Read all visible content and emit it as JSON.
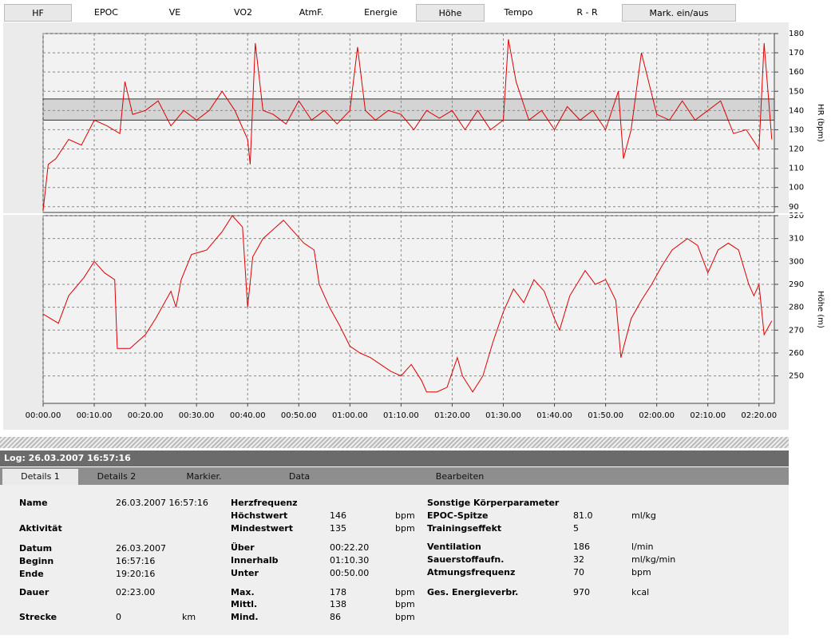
{
  "tabs": [
    {
      "label": "HF",
      "selected": true
    },
    {
      "label": "EPOC",
      "selected": false
    },
    {
      "label": "VE",
      "selected": false
    },
    {
      "label": "VO2",
      "selected": false
    },
    {
      "label": "AtmF.",
      "selected": false
    },
    {
      "label": "Energie",
      "selected": false
    },
    {
      "label": "Höhe",
      "selected": true
    },
    {
      "label": "Tempo",
      "selected": false
    },
    {
      "label": "R - R",
      "selected": false
    },
    {
      "label": "Mark. ein/aus",
      "selected": true
    }
  ],
  "chart_data": [
    {
      "type": "line",
      "ylabel": "HR (bpm)",
      "color": "#dd0000",
      "grid": true,
      "xlim": [
        0,
        143
      ],
      "ylim": [
        87,
        180
      ],
      "yticks": [
        90,
        100,
        110,
        120,
        130,
        140,
        150,
        160,
        170,
        180
      ],
      "zone": [
        135,
        146
      ],
      "x": [
        0,
        1,
        2.5,
        5,
        7.5,
        10,
        12.5,
        15,
        16,
        17.5,
        20,
        22.5,
        25,
        27.5,
        30,
        32.5,
        35,
        37.5,
        40,
        40.5,
        41.5,
        43,
        45,
        47.5,
        50,
        52.5,
        55,
        57.5,
        60,
        61.5,
        63,
        65,
        67.5,
        70,
        72.5,
        75,
        77.5,
        80,
        82.5,
        85,
        87.5,
        90,
        91,
        92.5,
        95,
        97.5,
        100,
        102.5,
        105,
        107.5,
        110,
        112.5,
        113.5,
        115,
        117,
        120,
        122.5,
        125,
        127.5,
        130,
        132.5,
        135,
        137.5,
        140,
        141,
        142.5
      ],
      "values": [
        88,
        112,
        115,
        125,
        122,
        135,
        132,
        128,
        155,
        138,
        140,
        145,
        132,
        140,
        135,
        140,
        150,
        140,
        125,
        112,
        175,
        140,
        138,
        133,
        145,
        135,
        140,
        133,
        140,
        173,
        140,
        135,
        140,
        138,
        130,
        140,
        136,
        140,
        130,
        140,
        130,
        135,
        177,
        155,
        135,
        140,
        130,
        142,
        135,
        140,
        130,
        150,
        115,
        130,
        170,
        138,
        135,
        145,
        135,
        140,
        145,
        128,
        130,
        120,
        175,
        125
      ]
    },
    {
      "type": "line",
      "ylabel": "Höhe (m)",
      "color": "#dd0000",
      "grid": true,
      "xlim": [
        0,
        143
      ],
      "ylim": [
        238,
        320
      ],
      "yticks": [
        250,
        260,
        270,
        280,
        290,
        300,
        310,
        320
      ],
      "xticks": [
        {
          "value": 0,
          "label": "00:00.00"
        },
        {
          "value": 10,
          "label": "00:10.00"
        },
        {
          "value": 20,
          "label": "00:20.00"
        },
        {
          "value": 30,
          "label": "00:30.00"
        },
        {
          "value": 40,
          "label": "00:40.00"
        },
        {
          "value": 50,
          "label": "00:50.00"
        },
        {
          "value": 60,
          "label": "01:00.00"
        },
        {
          "value": 70,
          "label": "01:10.00"
        },
        {
          "value": 80,
          "label": "01:20.00"
        },
        {
          "value": 90,
          "label": "01:30.00"
        },
        {
          "value": 100,
          "label": "01:40.00"
        },
        {
          "value": 110,
          "label": "01:50.00"
        },
        {
          "value": 120,
          "label": "02:00.00"
        },
        {
          "value": 130,
          "label": "02:10.00"
        },
        {
          "value": 140,
          "label": "02:20.00"
        }
      ],
      "x": [
        0,
        3,
        5,
        8,
        10,
        12,
        14,
        14.5,
        17,
        20,
        22,
        25,
        26,
        27,
        29,
        32,
        35,
        37,
        39,
        40,
        41,
        43,
        45,
        47,
        49,
        51,
        53,
        54,
        56,
        58,
        60,
        62,
        64,
        66,
        68,
        70,
        72,
        74,
        75,
        77,
        79,
        81,
        82,
        84,
        86,
        88,
        90,
        92,
        94,
        96,
        98,
        100,
        101,
        103,
        106,
        108,
        110,
        112,
        113,
        115,
        117,
        119,
        121,
        123,
        126,
        128,
        130,
        132,
        134,
        136,
        138,
        139,
        140,
        141,
        142.5
      ],
      "values": [
        277,
        273,
        285,
        293,
        300,
        295,
        292,
        262,
        262,
        268,
        275,
        287,
        280,
        292,
        303,
        305,
        313,
        320,
        315,
        280,
        302,
        310,
        314,
        318,
        313,
        308,
        305,
        290,
        280,
        272,
        263,
        260,
        258,
        255,
        252,
        250,
        255,
        248,
        243,
        243,
        245,
        258,
        250,
        243,
        250,
        265,
        278,
        288,
        282,
        292,
        287,
        275,
        270,
        285,
        296,
        290,
        292,
        283,
        258,
        275,
        283,
        290,
        298,
        305,
        310,
        307,
        295,
        305,
        308,
        305,
        290,
        285,
        290,
        268,
        274
      ]
    }
  ],
  "log": "Log: 26.03.2007 16:57:16",
  "bottom_tabs": [
    {
      "label": "Details 1",
      "selected": true
    },
    {
      "label": "Details 2",
      "selected": false
    },
    {
      "label": "Markier.",
      "selected": false
    },
    {
      "label": "Data",
      "selected": false
    },
    {
      "label": "Bearbeiten",
      "selected": false
    }
  ],
  "details": [
    {
      "title": null,
      "rows": [
        {
          "label": "Name",
          "value": "26.03.2007 16:57:16"
        },
        {
          "label": "Aktivität"
        },
        {
          "label": "Datum",
          "value": "26.03.2007"
        },
        {
          "label": "Beginn",
          "value": "16:57:16"
        },
        {
          "label": "Ende",
          "value": "19:20:16"
        },
        {
          "label": "Dauer",
          "value": "02:23.00"
        },
        {
          "label": "Strecke",
          "value": "0",
          "unit": "km"
        }
      ]
    },
    {
      "title": "Herzfrequenz",
      "rows": [
        {
          "label": "Höchstwert",
          "value": "146",
          "unit": "bpm"
        },
        {
          "label": "Mindestwert",
          "value": "135",
          "unit": "bpm"
        },
        {
          "label": "Über",
          "value": "00:22.20"
        },
        {
          "label": "Innerhalb",
          "value": "01:10.30"
        },
        {
          "label": "Unter",
          "value": "00:50.00"
        },
        {
          "label": "Max.",
          "value": "178",
          "unit": "bpm"
        },
        {
          "label": "Mittl.",
          "value": "138",
          "unit": "bpm"
        },
        {
          "label": "Mind.",
          "value": "86",
          "unit": "bpm"
        }
      ]
    },
    {
      "title": "Sonstige Körperparameter",
      "rows": [
        {
          "label": "EPOC-Spitze",
          "value": "81.0",
          "unit": "ml/kg"
        },
        {
          "label": "Trainingseffekt",
          "value": "5"
        },
        {
          "label": "Ventilation",
          "value": "186",
          "unit": "l/min"
        },
        {
          "label": "Sauerstoffaufn.",
          "value": "32",
          "unit": "ml/kg/min"
        },
        {
          "label": "Atmungsfrequenz",
          "value": "70",
          "unit": "bpm"
        },
        {
          "label": "Ges. Energieverbr.",
          "value": "970",
          "unit": "kcal"
        }
      ]
    }
  ]
}
